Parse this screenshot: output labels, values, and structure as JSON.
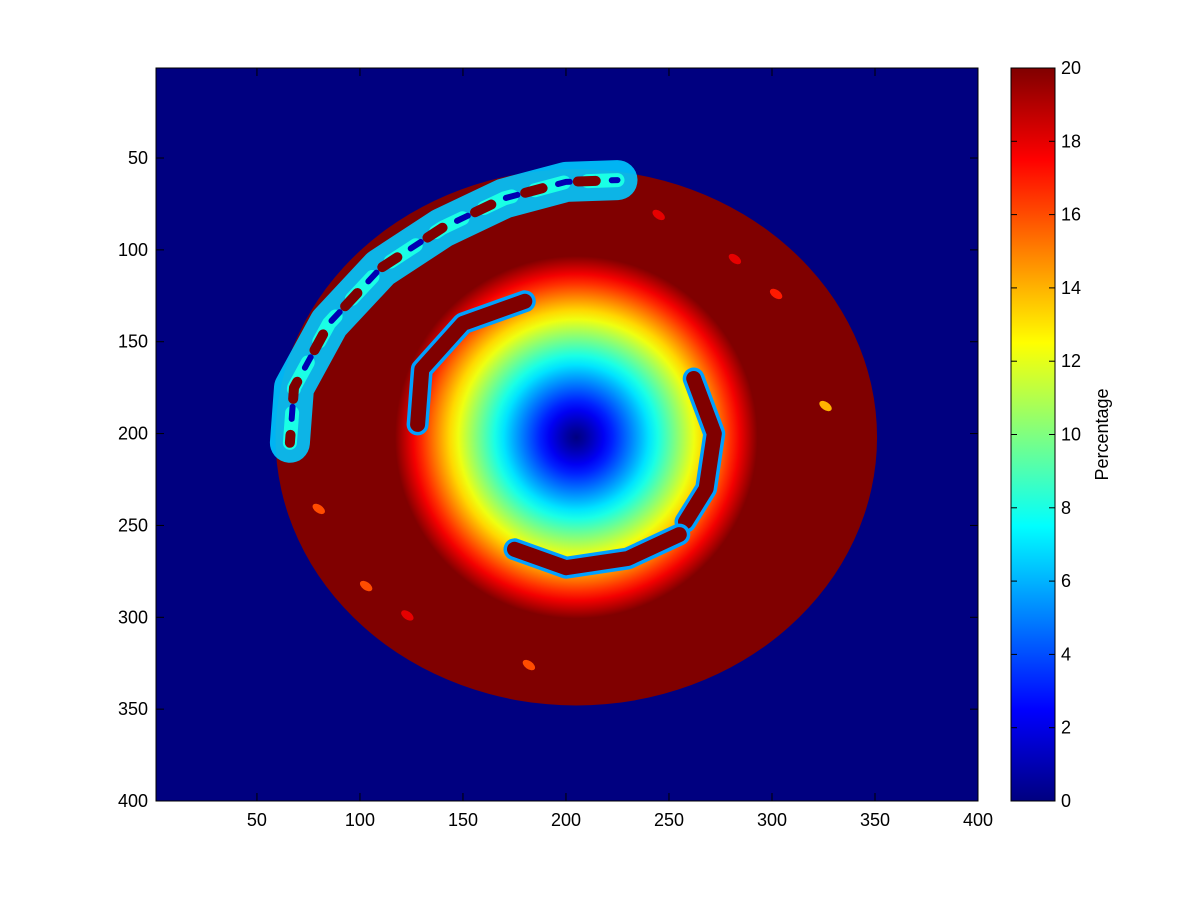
{
  "chart_data": {
    "type": "heatmap",
    "title": "",
    "xlabel": "",
    "ylabel": "",
    "xlim": [
      1,
      400
    ],
    "ylim": [
      1,
      400
    ],
    "y_axis_reversed": true,
    "grid": false,
    "x_ticks": [
      50,
      100,
      150,
      200,
      250,
      300,
      350,
      400
    ],
    "y_ticks": [
      50,
      100,
      150,
      200,
      250,
      300,
      350,
      400
    ],
    "x_tick_labels": [
      "50",
      "100",
      "150",
      "200",
      "250",
      "300",
      "350",
      "400"
    ],
    "y_tick_labels": [
      "50",
      "100",
      "150",
      "200",
      "250",
      "300",
      "350",
      "400"
    ],
    "colormap": "jet",
    "background_value": 0,
    "colorbar": {
      "label": "Percentage",
      "placement": "right",
      "range": [
        0,
        20
      ],
      "ticks": [
        0,
        2,
        4,
        6,
        8,
        10,
        12,
        14,
        16,
        18,
        20
      ],
      "tick_labels": [
        "0",
        "2",
        "4",
        "6",
        "8",
        "10",
        "12",
        "14",
        "16",
        "18",
        "20"
      ]
    },
    "disk": {
      "center": [
        205,
        202
      ],
      "outer_radius": [
        146,
        146
      ],
      "outer_value": 20
    },
    "inner_gradient": {
      "center": [
        205,
        202
      ],
      "radius": 88,
      "min_value": 0,
      "max_value": 20
    },
    "arc_features": [
      {
        "name": "inner-arc-upper-left",
        "path": [
          [
            128,
            195
          ],
          [
            130,
            165
          ],
          [
            150,
            140
          ],
          [
            180,
            128
          ]
        ],
        "value": 20
      },
      {
        "name": "inner-arc-right",
        "path": [
          [
            262,
            170
          ],
          [
            272,
            200
          ],
          [
            268,
            230
          ],
          [
            258,
            248
          ]
        ],
        "value": 20
      },
      {
        "name": "inner-arc-bottom",
        "path": [
          [
            175,
            263
          ],
          [
            200,
            273
          ],
          [
            230,
            268
          ],
          [
            255,
            255
          ]
        ],
        "value": 20
      },
      {
        "name": "rim-band-upper-left",
        "path": [
          [
            66,
            205
          ],
          [
            68,
            175
          ],
          [
            85,
            140
          ],
          [
            110,
            110
          ],
          [
            140,
            88
          ],
          [
            170,
            72
          ],
          [
            200,
            63
          ],
          [
            225,
            62
          ]
        ],
        "value": 8
      }
    ],
    "outer_spots": [
      {
        "x": 245,
        "y": 81,
        "value": 18
      },
      {
        "x": 282,
        "y": 105,
        "value": 18
      },
      {
        "x": 302,
        "y": 124,
        "value": 17
      },
      {
        "x": 326,
        "y": 185,
        "value": 14
      },
      {
        "x": 80,
        "y": 241,
        "value": 16
      },
      {
        "x": 103,
        "y": 283,
        "value": 16
      },
      {
        "x": 123,
        "y": 299,
        "value": 18
      },
      {
        "x": 182,
        "y": 326,
        "value": 16
      }
    ],
    "colors": {
      "background": "#00007f",
      "frame": "#000000"
    }
  }
}
